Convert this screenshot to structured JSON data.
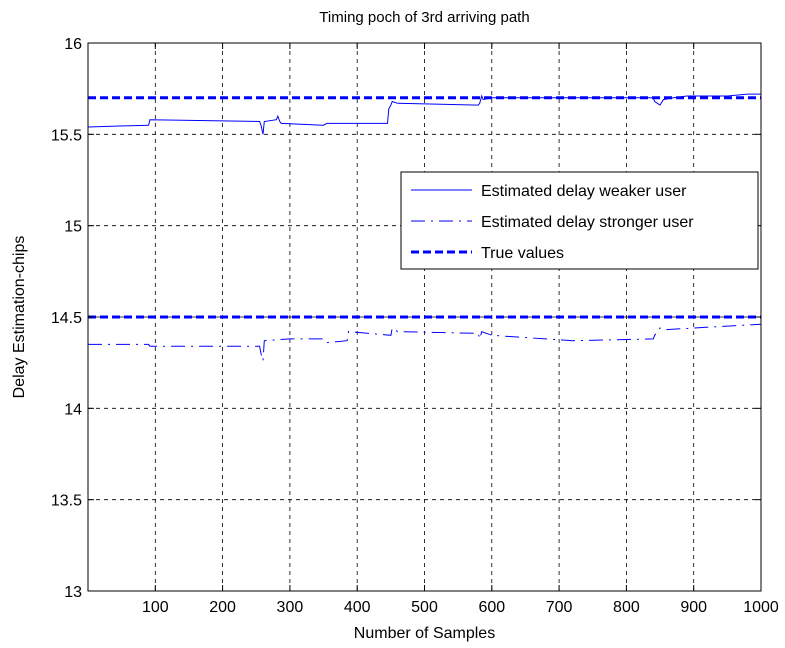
{
  "chart_data": {
    "type": "line",
    "title": "Timing poch of 3rd arriving path",
    "xlabel": "Number of Samples",
    "ylabel": "Delay  Estimation-chips",
    "xlim": [
      0,
      1000
    ],
    "ylim": [
      13,
      16
    ],
    "xticks": [
      100,
      200,
      300,
      400,
      500,
      600,
      700,
      800,
      900,
      1000
    ],
    "yticks": [
      13,
      13.5,
      14,
      14.5,
      15,
      15.5,
      16
    ],
    "grid": true,
    "legend_position": "right-center",
    "series": [
      {
        "name": "Estimated delay weaker user",
        "style": "solid",
        "color": "#0000ff",
        "x": [
          0,
          90,
          92,
          255,
          257,
          260,
          262,
          280,
          282,
          285,
          287,
          350,
          355,
          445,
          447,
          450,
          452,
          460,
          580,
          582,
          585,
          587,
          600,
          680,
          840,
          842,
          850,
          855,
          870,
          890,
          950,
          980,
          1000
        ],
        "y": [
          15.54,
          15.55,
          15.58,
          15.57,
          15.55,
          15.5,
          15.57,
          15.58,
          15.6,
          15.57,
          15.56,
          15.55,
          15.56,
          15.56,
          15.64,
          15.66,
          15.68,
          15.67,
          15.66,
          15.67,
          15.71,
          15.69,
          15.7,
          15.7,
          15.7,
          15.68,
          15.66,
          15.69,
          15.7,
          15.71,
          15.71,
          15.72,
          15.72
        ]
      },
      {
        "name": "Estimated delay stronger user",
        "style": "dashdot",
        "color": "#0000ff",
        "x": [
          0,
          90,
          92,
          255,
          257,
          260,
          262,
          300,
          350,
          355,
          385,
          387,
          450,
          452,
          460,
          580,
          582,
          585,
          600,
          680,
          720,
          840,
          842,
          850,
          855,
          900,
          950,
          1000
        ],
        "y": [
          14.35,
          14.35,
          14.34,
          14.34,
          14.3,
          14.26,
          14.37,
          14.38,
          14.38,
          14.36,
          14.37,
          14.42,
          14.4,
          14.44,
          14.42,
          14.41,
          14.38,
          14.42,
          14.4,
          14.38,
          14.37,
          14.38,
          14.4,
          14.44,
          14.43,
          14.44,
          14.45,
          14.46
        ]
      },
      {
        "name": "True values",
        "style": "dashed",
        "color": "#0000ff",
        "x": [
          0,
          1000
        ],
        "y": [
          15.7,
          15.7
        ],
        "x2": [
          0,
          1000
        ],
        "y2": [
          14.5,
          14.5
        ]
      }
    ]
  }
}
